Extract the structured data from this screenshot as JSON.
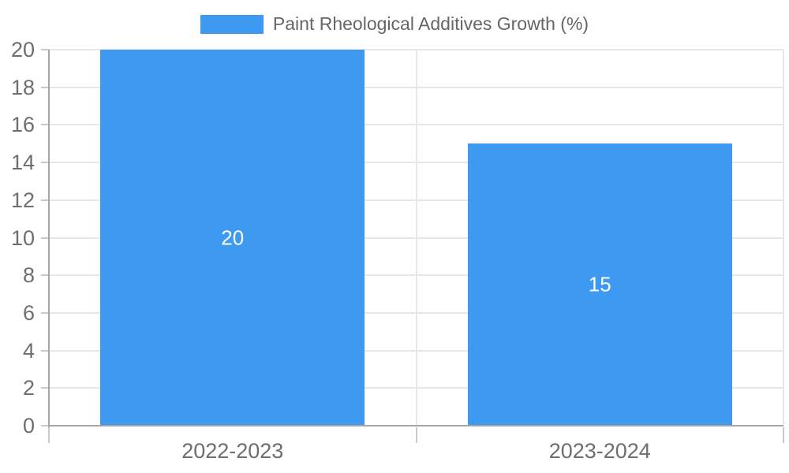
{
  "legend": {
    "label": "Paint Rheological Additives Growth (%)"
  },
  "colors": {
    "bar": "#3D9AF0",
    "legend_text": "#666666",
    "axis_text": "#6e6e6e",
    "grid_line": "#e7e7e7",
    "axis_line": "#a6a6a6",
    "tick_mark": "#c9c9c9",
    "bar_label_text": "#ffffff",
    "background": "#ffffff"
  },
  "chart_data": {
    "type": "bar",
    "title": "Paint Rheological Additives Growth (%)",
    "categories": [
      "2022-2023",
      "2023-2024"
    ],
    "series": [
      {
        "name": "Paint Rheological Additives Growth (%)",
        "values": [
          20,
          15
        ],
        "color": "#3D9AF0"
      }
    ],
    "data_labels": [
      "20",
      "15"
    ],
    "xlabel": "",
    "ylabel": "",
    "ylim": [
      0,
      20
    ],
    "ytick_step": 2,
    "grid": true,
    "legend_position": "top-center",
    "bar_label_position": "center"
  }
}
